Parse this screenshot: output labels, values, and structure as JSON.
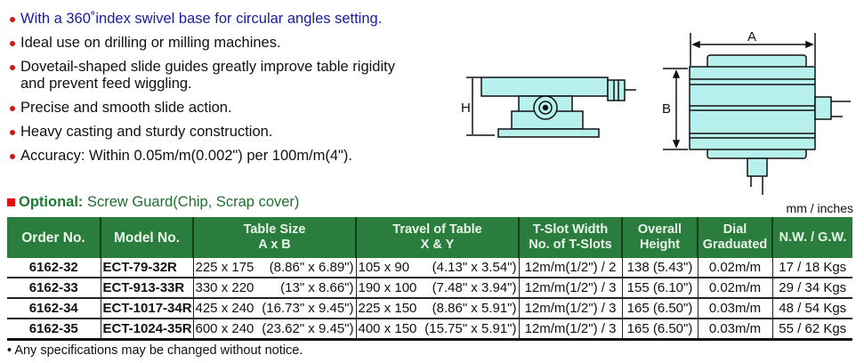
{
  "features": [
    "With a 360˚index swivel base for circular angles setting.",
    "Ideal use on drilling or milling machines.",
    "Dovetail-shaped slide guides greatly improve table rigidity and prevent feed wiggling.",
    "Precise and smooth slide action.",
    "Heavy casting and sturdy construction.",
    "Accuracy: Within 0.05m/m(0.002\") per 100m/m(4\")."
  ],
  "diagram": {
    "label_h": "H",
    "label_a": "A",
    "label_b": "B",
    "fill_color": "#b8f0ee"
  },
  "optional": {
    "label": "Optional:",
    "text": "Screw Guard(Chip, Scrap cover)"
  },
  "units": "mm / inches",
  "table": {
    "headers": [
      [
        "Order No."
      ],
      [
        "Model No."
      ],
      [
        "Table Size",
        "A x B"
      ],
      [
        "Travel of Table",
        "X & Y"
      ],
      [
        "T-Slot Width",
        "No. of T-Slots"
      ],
      [
        "Overall",
        "Height"
      ],
      [
        "Dial",
        "Graduated"
      ],
      [
        "N.W. / G.W."
      ]
    ],
    "rows": [
      {
        "order": "6162-32",
        "model": "ECT-79-32R",
        "size_mm": "225 x 175",
        "size_in": "(8.86\" x 6.89\")",
        "travel_mm": "105 x 90",
        "travel_in": "(4.13\" x 3.54\")",
        "tslot": "12m/m(1/2\") / 2",
        "height": "138 (5.43\")",
        "dial": "0.02m/m",
        "weight": "17 / 18 Kgs"
      },
      {
        "order": "6162-33",
        "model": "ECT-913-33R",
        "size_mm": "330 x 220",
        "size_in": "(13\" x 8.66\")",
        "travel_mm": "190 x 100",
        "travel_in": "(7.48\" x 3.94\")",
        "tslot": "12m/m(1/2\") / 3",
        "height": "155 (6.10\")",
        "dial": "0.02m/m",
        "weight": "29 / 34 Kgs"
      },
      {
        "order": "6162-34",
        "model": "ECT-1017-34R",
        "size_mm": "425 x 240",
        "size_in": "(16.73\" x 9.45\")",
        "travel_mm": "225 x 150",
        "travel_in": "(8.86\" x 5.91\")",
        "tslot": "12m/m(1/2\") / 3",
        "height": "165 (6.50\")",
        "dial": "0.03m/m",
        "weight": "48 / 54 Kgs"
      },
      {
        "order": "6162-35",
        "model": "ECT-1024-35R",
        "size_mm": "600 x 240",
        "size_in": "(23.62\" x 9.45\")",
        "travel_mm": "400 x 150",
        "travel_in": "(15.75\" x 5.91\")",
        "tslot": "12m/m(1/2\") / 3",
        "height": "165 (6.50\")",
        "dial": "0.03m/m",
        "weight": "55 / 62 Kgs"
      }
    ]
  },
  "note": "Any specifications may be changed without notice."
}
